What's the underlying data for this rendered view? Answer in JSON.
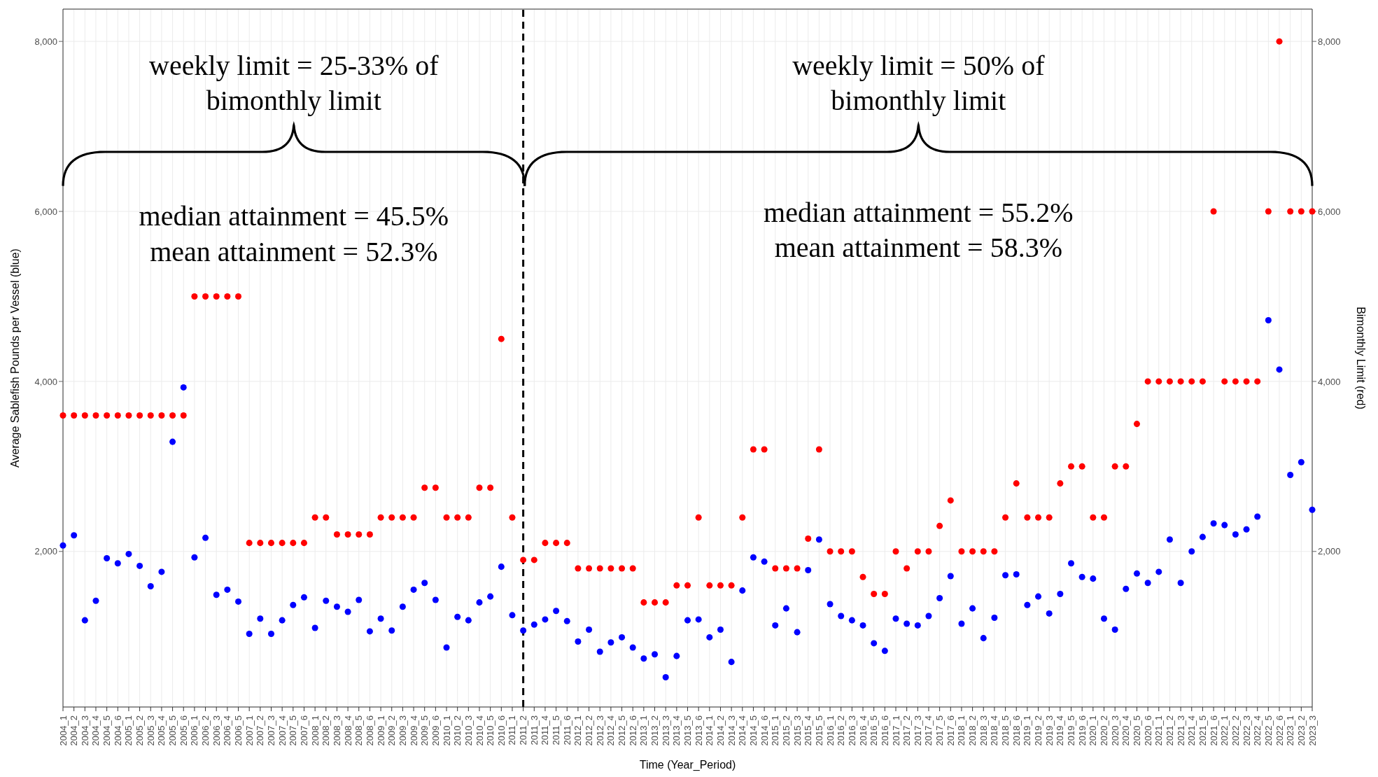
{
  "chart_data": {
    "type": "scatter",
    "xlabel": "Time (Year_Period)",
    "ylabel": "Average Sablefish Pounds per Vessel (blue)",
    "y2label": "Bimonthly Limit (red)",
    "categories": [
      "2004_1",
      "2004_2",
      "2004_3",
      "2004_4",
      "2004_5",
      "2004_6",
      "2005_1",
      "2005_2",
      "2005_3",
      "2005_4",
      "2005_5",
      "2005_6",
      "2006_1",
      "2006_2",
      "2006_3",
      "2006_4",
      "2006_5",
      "2007_1",
      "2007_2",
      "2007_3",
      "2007_4",
      "2007_5",
      "2007_6",
      "2008_1",
      "2008_2",
      "2008_3",
      "2008_4",
      "2008_5",
      "2008_6",
      "2009_1",
      "2009_2",
      "2009_3",
      "2009_4",
      "2009_5",
      "2009_6",
      "2010_1",
      "2010_2",
      "2010_3",
      "2010_4",
      "2010_5",
      "2010_6",
      "2011_1",
      "2011_2",
      "2011_3",
      "2011_4",
      "2011_5",
      "2011_6",
      "2012_1",
      "2012_2",
      "2012_3",
      "2012_4",
      "2012_5",
      "2012_6",
      "2013_1",
      "2013_2",
      "2013_3",
      "2013_4",
      "2013_5",
      "2013_6",
      "2014_1",
      "2014_2",
      "2014_3",
      "2014_4",
      "2014_5",
      "2014_6",
      "2015_1",
      "2015_2",
      "2015_3",
      "2015_4",
      "2015_5",
      "2016_1",
      "2016_2",
      "2016_3",
      "2016_4",
      "2016_5",
      "2016_6",
      "2017_1",
      "2017_2",
      "2017_3",
      "2017_4",
      "2017_5",
      "2017_6",
      "2018_1",
      "2018_2",
      "2018_3",
      "2018_4",
      "2018_5",
      "2018_6",
      "2019_1",
      "2019_2",
      "2019_3",
      "2019_4",
      "2019_5",
      "2019_6",
      "2020_1",
      "2020_2",
      "2020_3",
      "2020_4",
      "2020_5",
      "2020_6",
      "2021_1",
      "2021_2",
      "2021_3",
      "2021_4",
      "2021_5",
      "2021_6",
      "2022_1",
      "2022_2",
      "2022_3",
      "2022_4",
      "2022_5",
      "2022_6",
      "2023_1",
      "2023_2",
      "2023_3"
    ],
    "series": [
      {
        "color": "#0000ff",
        "values": [
          2070,
          2190,
          1190,
          1420,
          1920,
          1860,
          1970,
          1830,
          1590,
          1760,
          3290,
          3930,
          1930,
          2160,
          1490,
          1550,
          1410,
          1030,
          1210,
          1030,
          1190,
          1370,
          1460,
          1100,
          1420,
          1350,
          1290,
          1430,
          1060,
          1210,
          1070,
          1350,
          1550,
          1630,
          1430,
          870,
          1230,
          1190,
          1400,
          1470,
          1820,
          1250,
          1070,
          1140,
          1200,
          1300,
          1180,
          940,
          1080,
          820,
          930,
          990,
          870,
          740,
          790,
          520,
          770,
          1190,
          1200,
          990,
          1080,
          700,
          1540,
          1930,
          1880,
          1130,
          1330,
          1050,
          1780,
          2140,
          1380,
          1240,
          1190,
          1130,
          920,
          830,
          1210,
          1150,
          1130,
          1240,
          1450,
          1710,
          1150,
          1330,
          980,
          1220,
          1720,
          1730,
          1370,
          1470,
          1270,
          1500,
          1860,
          1700,
          1680,
          1210,
          1080,
          1560,
          1740,
          1630,
          1760,
          2140,
          1630,
          2000,
          2170,
          2330,
          2310,
          2200,
          2260,
          2410,
          4720,
          4140,
          2900,
          3050,
          2490
        ]
      },
      {
        "color": "#ff0000",
        "axis": "y2",
        "values": [
          3600,
          3600,
          3600,
          3600,
          3600,
          3600,
          3600,
          3600,
          3600,
          3600,
          3600,
          3600,
          5000,
          5000,
          5000,
          5000,
          5000,
          2100,
          2100,
          2100,
          2100,
          2100,
          2100,
          2400,
          2400,
          2200,
          2200,
          2200,
          2200,
          2400,
          2400,
          2400,
          2400,
          2750,
          2750,
          2400,
          2400,
          2400,
          2750,
          2750,
          4500,
          2400,
          1900,
          1900,
          2100,
          2100,
          2100,
          1800,
          1800,
          1800,
          1800,
          1800,
          1800,
          1400,
          1400,
          1400,
          1600,
          1600,
          2400,
          1600,
          1600,
          1600,
          2400,
          3200,
          3200,
          1800,
          1800,
          1800,
          2150,
          3200,
          2000,
          2000,
          2000,
          1700,
          1500,
          1500,
          2000,
          1800,
          2000,
          2000,
          2300,
          2600,
          2000,
          2000,
          2000,
          2000,
          2400,
          2800,
          2400,
          2400,
          2400,
          2800,
          3000,
          3000,
          2400,
          2400,
          3000,
          3000,
          3500,
          4000,
          4000,
          4000,
          4000,
          4000,
          4000,
          6000,
          4000,
          4000,
          4000,
          4000,
          6000,
          8000,
          6000,
          6000,
          6000
        ]
      }
    ],
    "ylim": [
      170,
      8380
    ],
    "yticks": [
      {
        "value": 2000,
        "label": "2,000"
      },
      {
        "value": 4000,
        "label": "4,000"
      },
      {
        "value": 6000,
        "label": "6,000"
      },
      {
        "value": 8000,
        "label": "8,000"
      }
    ],
    "y2lim": [
      170,
      8380
    ],
    "y2ticks": [
      {
        "value": 2000,
        "label": "2,000"
      },
      {
        "value": 4000,
        "label": "4,000"
      },
      {
        "value": 6000,
        "label": "6,000"
      },
      {
        "value": 8000,
        "label": "8,000"
      }
    ],
    "grid": true,
    "marker": "circle",
    "ref_lines": [
      {
        "axis": "x",
        "value": "2011_2",
        "color": "#000000",
        "line_style": "dashed"
      }
    ],
    "annotations": [
      "weekly limit = 25-33% of\nbimonthly limit",
      "median attainment = 45.5%",
      "mean attainment = 52.3%",
      "weekly limit = 50% of\nbimonthly limit",
      "median attainment = 55.2%",
      "mean attainment = 58.3%"
    ]
  }
}
